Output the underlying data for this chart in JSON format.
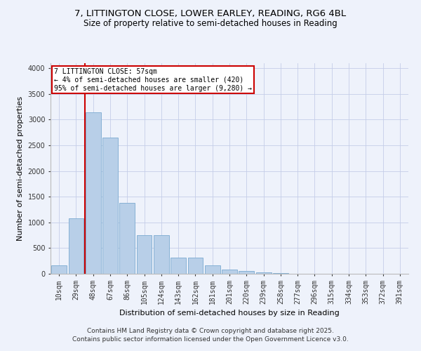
{
  "title_line1": "7, LITTINGTON CLOSE, LOWER EARLEY, READING, RG6 4BL",
  "title_line2": "Size of property relative to semi-detached houses in Reading",
  "xlabel": "Distribution of semi-detached houses by size in Reading",
  "ylabel": "Number of semi-detached properties",
  "categories": [
    "10sqm",
    "29sqm",
    "48sqm",
    "67sqm",
    "86sqm",
    "105sqm",
    "124sqm",
    "143sqm",
    "162sqm",
    "181sqm",
    "201sqm",
    "220sqm",
    "239sqm",
    "258sqm",
    "277sqm",
    "296sqm",
    "315sqm",
    "334sqm",
    "353sqm",
    "372sqm",
    "391sqm"
  ],
  "bar_heights": [
    170,
    1080,
    3150,
    2650,
    1380,
    750,
    750,
    310,
    310,
    170,
    85,
    50,
    30,
    12,
    5,
    2,
    1,
    0,
    0,
    0,
    0
  ],
  "bar_color": "#b8cfe8",
  "bar_edge_color": "#7aaad0",
  "vline_x_index": 2,
  "vline_color": "#cc0000",
  "annotation_text": "7 LITTINGTON CLOSE: 57sqm\n← 4% of semi-detached houses are smaller (420)\n95% of semi-detached houses are larger (9,280) →",
  "annotation_box_edgecolor": "#cc0000",
  "annotation_box_facecolor": "#ffffff",
  "ylim": [
    0,
    4100
  ],
  "yticks": [
    0,
    500,
    1000,
    1500,
    2000,
    2500,
    3000,
    3500,
    4000
  ],
  "footnote_line1": "Contains HM Land Registry data © Crown copyright and database right 2025.",
  "footnote_line2": "Contains public sector information licensed under the Open Government Licence v3.0.",
  "bg_color": "#eef2fb",
  "plot_bg_color": "#eef2fb",
  "grid_color": "#c5cde8",
  "title_fontsize": 9.5,
  "subtitle_fontsize": 8.5,
  "axis_label_fontsize": 8,
  "tick_fontsize": 7,
  "footnote_fontsize": 6.5,
  "annotation_fontsize": 7
}
